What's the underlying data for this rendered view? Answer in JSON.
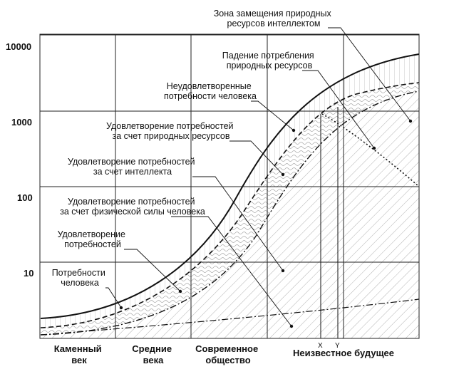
{
  "y_axis": {
    "scale": "log",
    "ticks": [
      "10000",
      "1000",
      "100",
      "10"
    ]
  },
  "eras": [
    [
      "Каменный",
      "век"
    ],
    [
      "Средние",
      "века"
    ],
    [
      "Современное",
      "общество"
    ],
    [
      "Неизвестное будущее"
    ]
  ],
  "markers": [
    "X",
    "Y"
  ],
  "labels": [
    [
      "Зона замещения природных",
      "ресурсов интеллектом"
    ],
    [
      "Падение потребления",
      "природных ресурсов"
    ],
    [
      "Неудовлетворенные",
      "потребности человека"
    ],
    [
      "Удовлетворение потребностей",
      "за счет природных ресурсов"
    ],
    [
      "Удовлетворение потребностей",
      "за счет интеллекта"
    ],
    [
      "Удовлетворение потребностей",
      "за счет физической силы человека"
    ],
    [
      "Удовлетворение",
      "потребностей"
    ],
    [
      "Потребности",
      "человека"
    ]
  ],
  "colors": {
    "line": "#111111",
    "grid": "#222222",
    "hatch": "#9a9a9a"
  }
}
